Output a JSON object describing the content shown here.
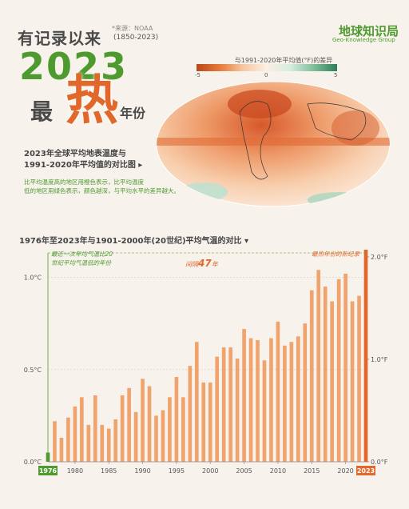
{
  "header": {
    "title": "有记录以来",
    "source": "*来源：NOAA",
    "period": "(1850-2023)",
    "year": "2023",
    "most": "最",
    "hot": "热",
    "suffix": "年份"
  },
  "logo": {
    "cn": "地球知识局",
    "en": "Geo-Knowledge Group"
  },
  "map": {
    "scale_title": "与1991-2020年平均值(°F)的差异",
    "scale_min": "-5",
    "scale_mid": "0",
    "scale_max": "5",
    "caption_line1": "2023年全球平均地表温度与",
    "caption_line2": "1991-2020年平均值的对比图 ▸",
    "note_line1": "比平均温度高的地区用橙色表示，比平均温度",
    "note_line2": "低的地区用绿色表示，颜色越深，与平均水平的差异越大。",
    "colors": {
      "warm": "#e2672b",
      "cool": "#4e9a2e"
    }
  },
  "section_title": "1976年至2023年与1901-2000年(20世纪)平均气温的对比 ▾",
  "chart_data": {
    "type": "bar",
    "x": [
      1976,
      1977,
      1978,
      1979,
      1980,
      1981,
      1982,
      1983,
      1984,
      1985,
      1986,
      1987,
      1988,
      1989,
      1990,
      1991,
      1992,
      1993,
      1994,
      1995,
      1996,
      1997,
      1998,
      1999,
      2000,
      2001,
      2002,
      2003,
      2004,
      2005,
      2006,
      2007,
      2008,
      2009,
      2010,
      2011,
      2012,
      2013,
      2014,
      2015,
      2016,
      2017,
      2018,
      2019,
      2020,
      2021,
      2022,
      2023
    ],
    "values": [
      0.05,
      0.22,
      0.13,
      0.24,
      0.3,
      0.35,
      0.2,
      0.36,
      0.2,
      0.18,
      0.23,
      0.36,
      0.4,
      0.27,
      0.45,
      0.41,
      0.25,
      0.28,
      0.35,
      0.46,
      0.35,
      0.52,
      0.65,
      0.43,
      0.43,
      0.57,
      0.62,
      0.62,
      0.56,
      0.72,
      0.67,
      0.66,
      0.55,
      0.67,
      0.76,
      0.63,
      0.65,
      0.68,
      0.75,
      0.93,
      1.04,
      0.95,
      0.87,
      0.99,
      1.02,
      0.87,
      0.9,
      1.15
    ],
    "xticks": [
      "1980",
      "1985",
      "1990",
      "1995",
      "2000",
      "2005",
      "2010",
      "2015",
      "2020"
    ],
    "first_label": "1976",
    "last_label": "2023",
    "yticks_left": [
      "0.0°C",
      "0.5°C",
      "1.0°C"
    ],
    "yticks_right": [
      "0.0°F",
      "1.0°F",
      "2.0°F"
    ],
    "ylim_c": [
      0,
      1.15
    ],
    "bar_color": "#f0a36d",
    "highlight_color": "#e2672b",
    "first_bar_color": "#4e9a2e",
    "annotations": {
      "left_line1": "最近一次年均气温比20",
      "left_line2": "世纪平均气温低的年份",
      "gap_prefix": "间隔",
      "gap_number": "47",
      "gap_suffix": "年",
      "record": "最热年份的新纪录"
    }
  }
}
